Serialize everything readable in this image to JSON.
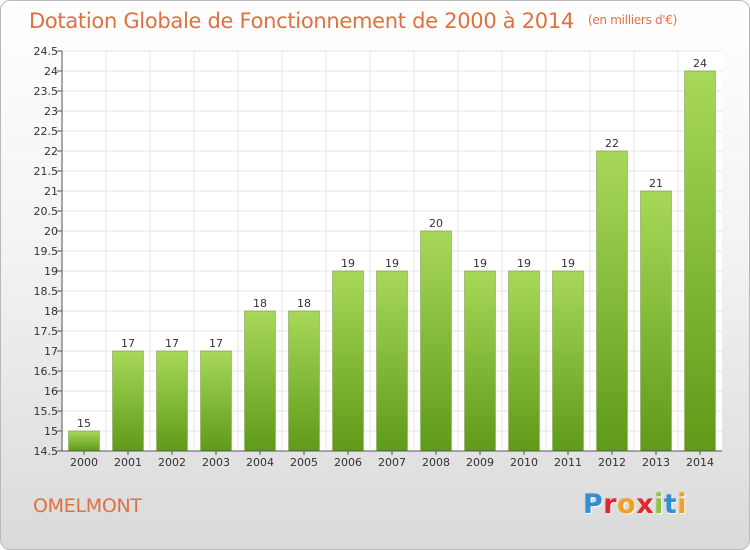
{
  "header": {
    "title": "Dotation Globale de Fonctionnement de 2000 à 2014",
    "subtitle": "(en milliers d'€)"
  },
  "footer": {
    "commune": "OMELMONT",
    "logo_letters": [
      {
        "ch": "P",
        "color": "#2f8fd0"
      },
      {
        "ch": "r",
        "color": "#e2262f"
      },
      {
        "ch": "o",
        "color": "#f2a11f"
      },
      {
        "ch": "x",
        "color": "#e2262f"
      },
      {
        "ch": "i",
        "color": "#8cc43f"
      },
      {
        "ch": "t",
        "color": "#2f8fd0"
      },
      {
        "ch": "i",
        "color": "#f2a11f"
      }
    ]
  },
  "chart_data": {
    "type": "bar",
    "title": "Dotation Globale de Fonctionnement de 2000 à 2014",
    "subtitle": "(en milliers d'€)",
    "categories": [
      "2000",
      "2001",
      "2002",
      "2003",
      "2004",
      "2005",
      "2006",
      "2007",
      "2008",
      "2009",
      "2010",
      "2011",
      "2012",
      "2013",
      "2014"
    ],
    "values": [
      15,
      17,
      17,
      17,
      18,
      18,
      19,
      19,
      20,
      19,
      19,
      19,
      22,
      21,
      24
    ],
    "value_labels": [
      "15",
      "17",
      "17",
      "17",
      "18",
      "18",
      "19",
      "19",
      "20",
      "19",
      "19",
      "19",
      "22",
      "21",
      "24"
    ],
    "ylim": [
      14.5,
      24.5
    ],
    "yticks": [
      "14.5",
      "15",
      "15.5",
      "16",
      "16.5",
      "17",
      "17.5",
      "18",
      "18.5",
      "19",
      "19.5",
      "20",
      "20.5",
      "21",
      "21.5",
      "22",
      "22.5",
      "23",
      "23.5",
      "24",
      "24.5"
    ],
    "grid": true,
    "colors": {
      "bar_light": "#a8d85a",
      "bar_dark": "#5f9a19",
      "grid": "#e4e4e4",
      "axis": "#555555"
    }
  }
}
